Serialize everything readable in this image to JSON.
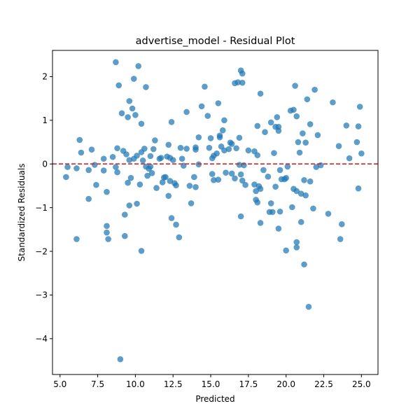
{
  "chart_data": {
    "type": "scatter",
    "title": "advertise_model - Residual Plot",
    "xlabel": "Predicted",
    "ylabel": "Standardized Residuals",
    "xlim": [
      4.5,
      26.1
    ],
    "ylim": [
      -4.82,
      2.6
    ],
    "xticks": [
      5.0,
      7.5,
      10.0,
      12.5,
      15.0,
      17.5,
      20.0,
      22.5,
      25.0
    ],
    "xtick_labels": [
      "5.0",
      "7.5",
      "10.0",
      "12.5",
      "15.0",
      "17.5",
      "20.0",
      "22.5",
      "25.0"
    ],
    "yticks": [
      -4,
      -3,
      -2,
      -1,
      0,
      1,
      2
    ],
    "ytick_labels": [
      "−4",
      "−3",
      "−2",
      "−1",
      "0",
      "1",
      "2"
    ],
    "grid": false,
    "reference_line": {
      "y": 0,
      "color": "#d62728",
      "style": "dashed"
    },
    "point_color": "#1f77b4",
    "points": [
      [
        5.4,
        -0.3
      ],
      [
        5.5,
        -0.07
      ],
      [
        6.1,
        -0.1
      ],
      [
        6.1,
        -1.72
      ],
      [
        6.3,
        0.55
      ],
      [
        6.4,
        0.26
      ],
      [
        6.9,
        -0.8
      ],
      [
        6.9,
        -0.14
      ],
      [
        7.1,
        0.33
      ],
      [
        7.3,
        -0.02
      ],
      [
        7.4,
        -0.48
      ],
      [
        7.9,
        0.12
      ],
      [
        7.9,
        -0.15
      ],
      [
        8.1,
        -0.64
      ],
      [
        8.1,
        -1.42
      ],
      [
        8.1,
        -1.57
      ],
      [
        8.2,
        -1.72
      ],
      [
        8.5,
        0.16
      ],
      [
        8.7,
        -0.07
      ],
      [
        8.7,
        2.33
      ],
      [
        8.8,
        -0.19
      ],
      [
        8.8,
        0.36
      ],
      [
        8.9,
        1.8
      ],
      [
        9.0,
        -4.47
      ],
      [
        9.1,
        1.16
      ],
      [
        9.2,
        0.3
      ],
      [
        9.3,
        -1.16
      ],
      [
        9.3,
        -1.65
      ],
      [
        9.4,
        0.22
      ],
      [
        9.5,
        -0.43
      ],
      [
        9.5,
        1.07
      ],
      [
        9.6,
        0.09
      ],
      [
        9.6,
        -0.95
      ],
      [
        9.6,
        1.44
      ],
      [
        9.7,
        -0.32
      ],
      [
        9.8,
        1.27
      ],
      [
        9.9,
        0.12
      ],
      [
        9.9,
        1.95
      ],
      [
        10.0,
        1.12
      ],
      [
        10.1,
        -0.91
      ],
      [
        10.1,
        0.19
      ],
      [
        10.2,
        2.24
      ],
      [
        10.3,
        -0.47
      ],
      [
        10.4,
        0.92
      ],
      [
        10.4,
        0.27
      ],
      [
        10.4,
        -1.99
      ],
      [
        10.5,
        0.08
      ],
      [
        10.6,
        0.35
      ],
      [
        10.7,
        -0.06
      ],
      [
        10.7,
        1.76
      ],
      [
        10.8,
        -0.27
      ],
      [
        10.9,
        -0.11
      ],
      [
        11.0,
        -0.06
      ],
      [
        11.0,
        0.18
      ],
      [
        11.1,
        -0.21
      ],
      [
        11.2,
        0.34
      ],
      [
        11.3,
        0.54
      ],
      [
        11.4,
        -0.55
      ],
      [
        11.6,
        0.12
      ],
      [
        11.7,
        0.14
      ],
      [
        11.8,
        -0.42
      ],
      [
        11.9,
        -0.31
      ],
      [
        12.0,
        -0.3
      ],
      [
        12.1,
        0.17
      ],
      [
        12.2,
        0.44
      ],
      [
        12.2,
        -0.73
      ],
      [
        12.3,
        -0.39
      ],
      [
        12.3,
        0.14
      ],
      [
        12.4,
        -1.24
      ],
      [
        12.4,
        0.96
      ],
      [
        12.5,
        0.09
      ],
      [
        12.6,
        -0.44
      ],
      [
        12.7,
        -1.39
      ],
      [
        12.7,
        -0.49
      ],
      [
        12.9,
        -1.68
      ],
      [
        13.0,
        0.37
      ],
      [
        13.1,
        0.12
      ],
      [
        13.2,
        -0.04
      ],
      [
        13.4,
        0.35
      ],
      [
        13.4,
        1.19
      ],
      [
        13.6,
        -0.5
      ],
      [
        13.7,
        -0.9
      ],
      [
        13.9,
        -0.3
      ],
      [
        14.0,
        0.38
      ],
      [
        14.0,
        0.33
      ],
      [
        14.0,
        -0.53
      ],
      [
        14.2,
        -0.01
      ],
      [
        14.2,
        0.61
      ],
      [
        14.4,
        1.32
      ],
      [
        14.6,
        1.77
      ],
      [
        14.8,
        1.1
      ],
      [
        14.9,
        0.37
      ],
      [
        15.0,
        0.59
      ],
      [
        15.1,
        0.13
      ],
      [
        15.1,
        -0.23
      ],
      [
        15.2,
        0.19
      ],
      [
        15.2,
        -0.37
      ],
      [
        15.4,
        0.24
      ],
      [
        15.5,
        1.39
      ],
      [
        15.5,
        -0.36
      ],
      [
        15.6,
        0.65
      ],
      [
        15.6,
        0.61
      ],
      [
        15.7,
        0.4
      ],
      [
        15.8,
        0.77
      ],
      [
        15.9,
        1.0
      ],
      [
        15.9,
        0.31
      ],
      [
        16.0,
        -0.2
      ],
      [
        16.2,
        0.34
      ],
      [
        16.3,
        0.49
      ],
      [
        16.4,
        -0.22
      ],
      [
        16.4,
        0.46
      ],
      [
        16.6,
        1.85
      ],
      [
        16.6,
        -0.33
      ],
      [
        16.7,
        0.36
      ],
      [
        16.8,
        1.87
      ],
      [
        16.9,
        0.6
      ],
      [
        16.9,
        -0.02
      ],
      [
        17.0,
        -0.24
      ],
      [
        17.0,
        -1.2
      ],
      [
        17.0,
        2.14
      ],
      [
        17.1,
        1.86
      ],
      [
        17.1,
        2.07
      ],
      [
        17.1,
        -0.38
      ],
      [
        17.2,
        -0.03
      ],
      [
        17.3,
        -0.48
      ],
      [
        17.5,
        0.31
      ],
      [
        17.9,
        0.29
      ],
      [
        17.9,
        -0.47
      ],
      [
        18.0,
        -0.82
      ],
      [
        18.0,
        -0.62
      ],
      [
        18.1,
        0.87
      ],
      [
        18.1,
        0.2
      ],
      [
        18.1,
        -0.88
      ],
      [
        18.2,
        -0.51
      ],
      [
        18.3,
        1.61
      ],
      [
        18.3,
        -0.57
      ],
      [
        18.3,
        -1.35
      ],
      [
        18.5,
        -0.14
      ],
      [
        18.6,
        0.73
      ],
      [
        18.8,
        -0.29
      ],
      [
        18.9,
        -1.1
      ],
      [
        19.0,
        -0.9
      ],
      [
        19.0,
        0.95
      ],
      [
        19.1,
        -1.1
      ],
      [
        19.2,
        0.25
      ],
      [
        19.3,
        -0.52
      ],
      [
        19.3,
        0.85
      ],
      [
        19.4,
        1.07
      ],
      [
        19.5,
        0.85
      ],
      [
        19.5,
        -1.48
      ],
      [
        19.5,
        0.76
      ],
      [
        19.6,
        -1.09
      ],
      [
        19.6,
        -0.14
      ],
      [
        19.7,
        -0.35
      ],
      [
        19.9,
        -0.35
      ],
      [
        20.0,
        -1.98
      ],
      [
        20.0,
        -0.32
      ],
      [
        20.1,
        -0.06
      ],
      [
        20.3,
        1.22
      ],
      [
        20.4,
        -0.99
      ],
      [
        20.5,
        -0.57
      ],
      [
        20.5,
        1.24
      ],
      [
        20.6,
        1.79
      ],
      [
        20.7,
        1.09
      ],
      [
        20.7,
        -0.62
      ],
      [
        20.7,
        -1.79
      ],
      [
        20.7,
        -1.91
      ],
      [
        20.8,
        0.5
      ],
      [
        20.9,
        0.26
      ],
      [
        21.0,
        -0.68
      ],
      [
        21.0,
        -1.33
      ],
      [
        21.1,
        0.7
      ],
      [
        21.2,
        -2.3
      ],
      [
        21.2,
        -0.37
      ],
      [
        21.3,
        0.49
      ],
      [
        21.3,
        -0.72
      ],
      [
        21.4,
        1.48
      ],
      [
        21.5,
        -3.27
      ],
      [
        21.6,
        -0.4
      ],
      [
        21.6,
        0.91
      ],
      [
        21.8,
        -1.02
      ],
      [
        21.9,
        1.7
      ],
      [
        22.0,
        -0.07
      ],
      [
        22.1,
        0.66
      ],
      [
        22.3,
        -0.03
      ],
      [
        22.8,
        -1.14
      ],
      [
        23.1,
        1.41
      ],
      [
        23.5,
        0.41
      ],
      [
        23.6,
        -1.72
      ],
      [
        23.7,
        -1.38
      ],
      [
        24.0,
        0.88
      ],
      [
        24.2,
        0.13
      ],
      [
        24.7,
        0.5
      ],
      [
        24.8,
        0.86
      ],
      [
        24.8,
        -0.56
      ],
      [
        24.9,
        1.31
      ],
      [
        25.0,
        0.24
      ]
    ]
  }
}
